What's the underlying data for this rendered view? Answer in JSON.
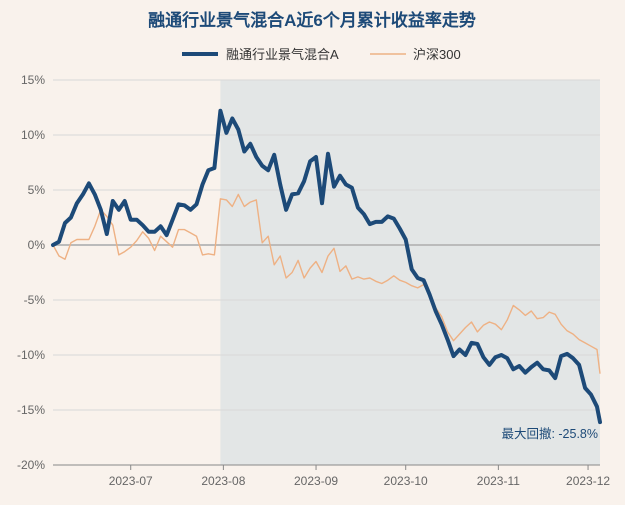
{
  "chart_data": {
    "type": "line",
    "title": "融通行业景气混合A近6个月累计收益率走势",
    "xlabel": "",
    "ylabel": "",
    "ylim": [
      -20,
      15
    ],
    "yticks": [
      15,
      10,
      5,
      0,
      -5,
      -10,
      -15,
      -20
    ],
    "ytick_labels": [
      "15%",
      "10%",
      "5%",
      "0%",
      "-5%",
      "-10%",
      "-15%",
      "-20%"
    ],
    "x_start": "2023-06-05",
    "x_end": "2023-12-05",
    "xticks": [
      "2023-07-01",
      "2023-08-01",
      "2023-09-01",
      "2023-10-01",
      "2023-11-01",
      "2023-12-01"
    ],
    "xtick_labels": [
      "2023-07",
      "2023-08",
      "2023-09",
      "2023-10",
      "2023-11",
      "2023-12"
    ],
    "legend_position": "top-center",
    "grid": "horizontal",
    "shaded_region": {
      "x_start": "2023-07-31",
      "x_end": "2023-12-05"
    },
    "annotation": {
      "text": "最大回撤: -25.8%"
    },
    "colors": {
      "fund": "#1d4a78",
      "index": "#eeb184",
      "background": "#f9f2ec",
      "grid": "#cccccc",
      "shade": "#e3e6e6"
    },
    "series": [
      {
        "name": "融通行业景气混合A",
        "x": [
          "2023-06-05",
          "2023-06-07",
          "2023-06-09",
          "2023-06-11",
          "2023-06-13",
          "2023-06-15",
          "2023-06-17",
          "2023-06-19",
          "2023-06-21",
          "2023-06-23",
          "2023-06-25",
          "2023-06-27",
          "2023-06-29",
          "2023-07-01",
          "2023-07-03",
          "2023-07-05",
          "2023-07-07",
          "2023-07-09",
          "2023-07-11",
          "2023-07-13",
          "2023-07-15",
          "2023-07-17",
          "2023-07-19",
          "2023-07-21",
          "2023-07-23",
          "2023-07-25",
          "2023-07-27",
          "2023-07-29",
          "2023-07-31",
          "2023-08-02",
          "2023-08-04",
          "2023-08-06",
          "2023-08-08",
          "2023-08-10",
          "2023-08-12",
          "2023-08-14",
          "2023-08-16",
          "2023-08-18",
          "2023-08-20",
          "2023-08-22",
          "2023-08-24",
          "2023-08-26",
          "2023-08-28",
          "2023-08-30",
          "2023-09-01",
          "2023-09-03",
          "2023-09-05",
          "2023-09-07",
          "2023-09-09",
          "2023-09-11",
          "2023-09-13",
          "2023-09-15",
          "2023-09-17",
          "2023-09-19",
          "2023-09-21",
          "2023-09-23",
          "2023-09-25",
          "2023-09-27",
          "2023-09-29",
          "2023-10-01",
          "2023-10-03",
          "2023-10-05",
          "2023-10-07",
          "2023-10-09",
          "2023-10-11",
          "2023-10-13",
          "2023-10-15",
          "2023-10-17",
          "2023-10-19",
          "2023-10-21",
          "2023-10-23",
          "2023-10-25",
          "2023-10-27",
          "2023-10-29",
          "2023-10-31",
          "2023-11-02",
          "2023-11-04",
          "2023-11-06",
          "2023-11-08",
          "2023-11-10",
          "2023-11-12",
          "2023-11-14",
          "2023-11-16",
          "2023-11-18",
          "2023-11-20",
          "2023-11-22",
          "2023-11-24",
          "2023-11-26",
          "2023-11-28",
          "2023-11-30",
          "2023-12-02",
          "2023-12-04",
          "2023-12-05"
        ],
        "values": [
          0.0,
          0.3,
          2.0,
          2.5,
          3.8,
          4.6,
          5.6,
          4.6,
          3.2,
          1.0,
          4.0,
          3.2,
          4.0,
          2.3,
          2.3,
          1.8,
          1.2,
          1.2,
          1.7,
          0.9,
          2.3,
          3.7,
          3.6,
          3.2,
          3.7,
          5.5,
          6.8,
          7.0,
          12.2,
          10.2,
          11.5,
          10.5,
          8.5,
          9.2,
          8.0,
          7.2,
          6.8,
          8.2,
          5.5,
          3.2,
          4.6,
          4.7,
          5.8,
          7.6,
          8.0,
          3.8,
          8.3,
          5.3,
          6.3,
          5.5,
          5.2,
          3.4,
          2.8,
          1.9,
          2.1,
          2.1,
          2.6,
          2.4,
          1.5,
          0.5,
          -2.2,
          -3.0,
          -3.2,
          -4.5,
          -6.0,
          -7.2,
          -8.6,
          -10.1,
          -9.5,
          -10.0,
          -8.9,
          -9.0,
          -10.2,
          -10.9,
          -10.2,
          -10.0,
          -10.3,
          -11.3,
          -11.0,
          -11.6,
          -11.1,
          -10.7,
          -11.3,
          -11.4,
          -12.1,
          -10.1,
          -9.9,
          -10.3,
          -10.9,
          -13.0,
          -13.6,
          -14.7,
          -16.1
        ]
      },
      {
        "name": "沪深300",
        "x": [
          "2023-06-05",
          "2023-06-07",
          "2023-06-09",
          "2023-06-11",
          "2023-06-13",
          "2023-06-15",
          "2023-06-17",
          "2023-06-19",
          "2023-06-21",
          "2023-06-23",
          "2023-06-25",
          "2023-06-27",
          "2023-06-29",
          "2023-07-01",
          "2023-07-03",
          "2023-07-05",
          "2023-07-07",
          "2023-07-09",
          "2023-07-11",
          "2023-07-13",
          "2023-07-15",
          "2023-07-17",
          "2023-07-19",
          "2023-07-21",
          "2023-07-23",
          "2023-07-25",
          "2023-07-27",
          "2023-07-29",
          "2023-07-31",
          "2023-08-02",
          "2023-08-04",
          "2023-08-06",
          "2023-08-08",
          "2023-08-10",
          "2023-08-12",
          "2023-08-14",
          "2023-08-16",
          "2023-08-18",
          "2023-08-20",
          "2023-08-22",
          "2023-08-24",
          "2023-08-26",
          "2023-08-28",
          "2023-08-30",
          "2023-09-01",
          "2023-09-03",
          "2023-09-05",
          "2023-09-07",
          "2023-09-09",
          "2023-09-11",
          "2023-09-13",
          "2023-09-15",
          "2023-09-17",
          "2023-09-19",
          "2023-09-21",
          "2023-09-23",
          "2023-09-25",
          "2023-09-27",
          "2023-09-29",
          "2023-10-01",
          "2023-10-03",
          "2023-10-05",
          "2023-10-07",
          "2023-10-09",
          "2023-10-11",
          "2023-10-13",
          "2023-10-15",
          "2023-10-17",
          "2023-10-19",
          "2023-10-21",
          "2023-10-23",
          "2023-10-25",
          "2023-10-27",
          "2023-10-29",
          "2023-10-31",
          "2023-11-02",
          "2023-11-04",
          "2023-11-06",
          "2023-11-08",
          "2023-11-10",
          "2023-11-12",
          "2023-11-14",
          "2023-11-16",
          "2023-11-18",
          "2023-11-20",
          "2023-11-22",
          "2023-11-24",
          "2023-11-26",
          "2023-11-28",
          "2023-11-30",
          "2023-12-02",
          "2023-12-04",
          "2023-12-05"
        ],
        "values": [
          0.0,
          -1.0,
          -1.3,
          0.2,
          0.5,
          0.5,
          0.5,
          1.7,
          3.2,
          2.6,
          1.8,
          -0.9,
          -0.6,
          -0.2,
          0.4,
          1.2,
          0.6,
          -0.5,
          0.8,
          0.3,
          -0.2,
          1.4,
          1.4,
          1.1,
          0.8,
          -0.9,
          -0.8,
          -0.9,
          4.2,
          4.1,
          3.5,
          4.6,
          3.5,
          3.9,
          4.1,
          0.2,
          0.8,
          -1.8,
          -1.0,
          -3.0,
          -2.5,
          -1.4,
          -3.0,
          -2.1,
          -1.5,
          -2.5,
          -1.0,
          -0.3,
          -2.4,
          -1.9,
          -3.1,
          -2.9,
          -3.1,
          -3.0,
          -3.3,
          -3.5,
          -3.2,
          -2.8,
          -3.2,
          -3.4,
          -3.7,
          -3.9,
          -3.6,
          -4.4,
          -5.7,
          -6.5,
          -7.9,
          -8.7,
          -8.1,
          -7.5,
          -7.0,
          -7.9,
          -7.3,
          -7.0,
          -7.2,
          -7.7,
          -6.8,
          -5.5,
          -5.9,
          -6.4,
          -6.0,
          -6.7,
          -6.6,
          -6.1,
          -6.3,
          -7.2,
          -7.8,
          -8.1,
          -8.6,
          -8.9,
          -9.2,
          -9.5,
          -11.7
        ]
      }
    ]
  }
}
